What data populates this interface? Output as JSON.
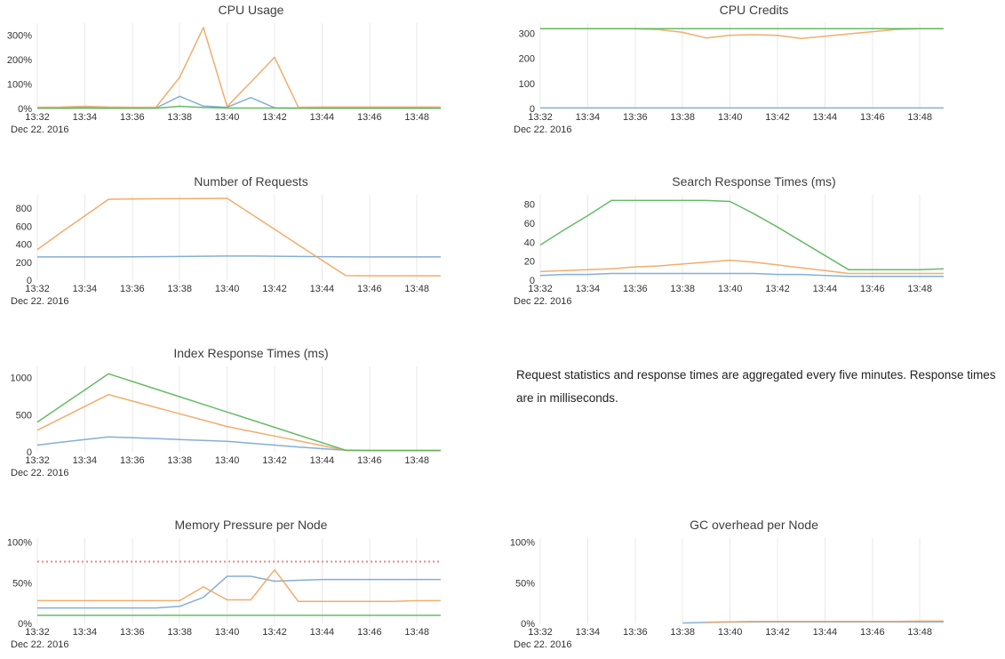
{
  "note": {
    "text": "Request statistics and response times are aggregated every five minutes. Response times are in milliseconds."
  },
  "axis": {
    "date_label": "Dec 22. 2016",
    "start_minute": 32,
    "tick_minutes": [
      32,
      34,
      36,
      38,
      40,
      42,
      44,
      46,
      48
    ],
    "tick_labels": [
      "13:32",
      "13:34",
      "13:36",
      "13:38",
      "13:40",
      "13:42",
      "13:44",
      "13:46",
      "13:48"
    ],
    "grid": "vertical-only"
  },
  "colors": {
    "blue": "#78a5d3",
    "orange": "#f0a45c",
    "green": "#55b455",
    "threshold_red": "#eb8787",
    "gridline": "#e8e8e8",
    "tick_text": "#333333",
    "title_text": "#3e3e3e"
  },
  "chart_data": [
    {
      "type": "line",
      "title": "CPU Usage",
      "ymax": 350,
      "xlabel": "",
      "legend": "none",
      "yticks": [
        {
          "v": 0,
          "label": "0%"
        },
        {
          "v": 100,
          "label": "100%"
        },
        {
          "v": 200,
          "label": "200%"
        },
        {
          "v": 300,
          "label": "300%"
        }
      ],
      "series": [
        {
          "name": "series-blue",
          "color": "blue",
          "values": [
            2,
            2,
            3,
            2,
            2,
            2,
            50,
            10,
            5,
            45,
            3,
            2,
            2,
            2,
            2,
            2,
            2,
            2
          ]
        },
        {
          "name": "series-green",
          "color": "green",
          "values": [
            1,
            1,
            2,
            1,
            1,
            1,
            9,
            4,
            2,
            2,
            2,
            1,
            1,
            1,
            1,
            1,
            1,
            1
          ]
        },
        {
          "name": "series-orange",
          "color": "orange",
          "values": [
            5,
            6,
            9,
            6,
            5,
            5,
            128,
            332,
            8,
            108,
            210,
            5,
            6,
            6,
            6,
            6,
            6,
            6
          ]
        }
      ]
    },
    {
      "type": "line",
      "title": "CPU Credits",
      "ymax": 340,
      "xlabel": "",
      "legend": "none",
      "yticks": [
        {
          "v": 0,
          "label": "0"
        },
        {
          "v": 100,
          "label": "100"
        },
        {
          "v": 200,
          "label": "200"
        },
        {
          "v": 300,
          "label": "300"
        }
      ],
      "series": [
        {
          "name": "series-blue",
          "color": "blue",
          "values": [
            2,
            2,
            2,
            2,
            2,
            2,
            2,
            2,
            2,
            2,
            2,
            2,
            2,
            2,
            2,
            2,
            2,
            2
          ]
        },
        {
          "name": "series-orange",
          "color": "orange",
          "values": [
            318,
            318,
            318,
            318,
            318,
            314,
            303,
            281,
            292,
            294,
            291,
            279,
            288,
            297,
            306,
            315,
            318,
            318
          ]
        },
        {
          "name": "series-green",
          "color": "green",
          "values": [
            318,
            318,
            318,
            318,
            318,
            318,
            318,
            318,
            318,
            318,
            318,
            318,
            318,
            318,
            318,
            318,
            318,
            318
          ]
        }
      ]
    },
    {
      "type": "line",
      "title": "Number of Requests",
      "ymax": 950,
      "xlabel": "",
      "legend": "none",
      "yticks": [
        {
          "v": 0,
          "label": "0"
        },
        {
          "v": 200,
          "label": "200"
        },
        {
          "v": 400,
          "label": "400"
        },
        {
          "v": 600,
          "label": "600"
        },
        {
          "v": 800,
          "label": "800"
        }
      ],
      "series": [
        {
          "name": "series-blue",
          "color": "blue",
          "values": [
            258,
            258,
            258,
            258,
            259,
            261,
            263,
            266,
            268,
            268,
            266,
            263,
            261,
            259,
            258,
            258,
            258,
            258
          ]
        },
        {
          "name": "series-orange",
          "color": "orange",
          "values": [
            340,
            530,
            715,
            900,
            903,
            905,
            906,
            907,
            910,
            738,
            566,
            394,
            222,
            50,
            48,
            48,
            48,
            48
          ]
        }
      ]
    },
    {
      "type": "line",
      "title": "Search Response Times (ms)",
      "ymax": 90,
      "xlabel": "",
      "legend": "none",
      "yticks": [
        {
          "v": 0,
          "label": "0"
        },
        {
          "v": 20,
          "label": "20"
        },
        {
          "v": 40,
          "label": "40"
        },
        {
          "v": 60,
          "label": "60"
        },
        {
          "v": 80,
          "label": "80"
        }
      ],
      "series": [
        {
          "name": "series-blue",
          "color": "blue",
          "values": [
            5,
            6,
            6,
            7,
            7,
            7,
            7,
            7,
            7,
            7,
            6,
            6,
            5,
            4,
            4,
            4,
            4,
            4
          ]
        },
        {
          "name": "series-orange",
          "color": "orange",
          "values": [
            9,
            10,
            11,
            12,
            14,
            15,
            17,
            19,
            21,
            19,
            16,
            13,
            10,
            7,
            7,
            7,
            7,
            7
          ]
        },
        {
          "name": "series-green",
          "color": "green",
          "values": [
            37,
            53,
            68,
            84,
            84,
            84,
            84,
            84,
            83,
            70,
            56,
            41,
            26,
            11,
            11,
            11,
            11,
            12
          ]
        }
      ]
    },
    {
      "type": "line",
      "title": "Index Response Times (ms)",
      "ymax": 1150,
      "xlabel": "",
      "legend": "none",
      "yticks": [
        {
          "v": 0,
          "label": "0"
        },
        {
          "v": 500,
          "label": "500"
        },
        {
          "v": 1000,
          "label": "1000"
        }
      ],
      "series": [
        {
          "name": "series-blue",
          "color": "blue",
          "values": [
            90,
            128,
            165,
            200,
            190,
            178,
            165,
            152,
            140,
            115,
            90,
            65,
            42,
            20,
            17,
            17,
            17,
            17
          ]
        },
        {
          "name": "series-orange",
          "color": "orange",
          "values": [
            290,
            450,
            610,
            770,
            684,
            598,
            512,
            426,
            340,
            276,
            212,
            148,
            84,
            18,
            17,
            17,
            17,
            17
          ]
        },
        {
          "name": "series-green",
          "color": "green",
          "values": [
            400,
            617,
            833,
            1050,
            947,
            844,
            741,
            638,
            535,
            432,
            329,
            226,
            123,
            20,
            18,
            18,
            18,
            18
          ]
        }
      ]
    },
    {
      "type": "line",
      "title": "Memory Pressure per Node",
      "ymax": 105,
      "xlabel": "",
      "legend": "none",
      "yticks": [
        {
          "v": 0,
          "label": "0%"
        },
        {
          "v": 50,
          "label": "50%"
        },
        {
          "v": 100,
          "label": "100%"
        }
      ],
      "threshold": {
        "v": 76,
        "style": "dotted"
      },
      "series": [
        {
          "name": "series-green",
          "color": "green",
          "values": [
            10,
            10,
            10,
            10,
            10,
            10,
            10,
            10,
            10,
            10,
            10,
            10,
            10,
            10,
            10,
            10,
            10,
            10
          ]
        },
        {
          "name": "series-blue",
          "color": "blue",
          "values": [
            19,
            19,
            19,
            19,
            19,
            19,
            21,
            32,
            58,
            58,
            52,
            53,
            54,
            54,
            54,
            54,
            54,
            54
          ]
        },
        {
          "name": "series-orange",
          "color": "orange",
          "values": [
            28,
            28,
            28,
            28,
            28,
            28,
            28,
            45,
            29,
            29,
            66,
            27,
            27,
            27,
            27,
            27,
            28,
            28
          ]
        }
      ]
    },
    {
      "type": "line",
      "title": "GC overhead per Node",
      "ymax": 105,
      "xlabel": "",
      "legend": "none",
      "yticks": [
        {
          "v": 0,
          "label": "0%"
        },
        {
          "v": 50,
          "label": "50%"
        },
        {
          "v": 100,
          "label": "100%"
        }
      ],
      "series": [
        {
          "name": "series-blue",
          "color": "blue",
          "values": [
            null,
            null,
            null,
            null,
            null,
            null,
            0.5,
            1.2,
            1.8,
            2,
            2,
            2,
            2,
            2,
            2,
            2,
            2,
            2
          ]
        },
        {
          "name": "series-orange",
          "color": "orange",
          "values": [
            null,
            null,
            null,
            null,
            null,
            null,
            null,
            1.5,
            2,
            2.4,
            2.5,
            2.5,
            2.5,
            2.5,
            2.5,
            2.5,
            2.8,
            2.8
          ]
        }
      ]
    }
  ]
}
